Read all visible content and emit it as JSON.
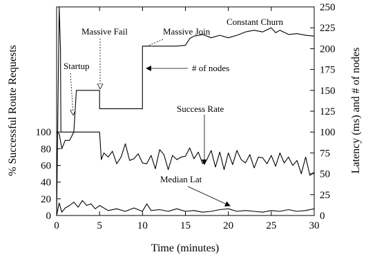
{
  "chart_data": {
    "type": "line",
    "xlabel": "Time (minutes)",
    "ylabel_left": "% Successful Route Requests",
    "ylabel_right": "Latency (ms) and # of nodes",
    "xlim": [
      0,
      30
    ],
    "ylim_right": [
      0,
      250
    ],
    "left_axis_scale_note": "left axis 0-100 maps to right axis 0-100",
    "x_ticks": [
      0,
      5,
      10,
      15,
      20,
      25,
      30
    ],
    "y_left_ticks": [
      0,
      20,
      40,
      60,
      80,
      100
    ],
    "y_right_ticks": [
      0,
      25,
      50,
      75,
      100,
      125,
      150,
      175,
      200,
      225,
      250
    ],
    "grid": false,
    "legend": "none",
    "series": [
      {
        "x": [
          0,
          0.3,
          0.45,
          0.5,
          1.0,
          1.5,
          2.0,
          2.3,
          2.5,
          3.0,
          3.5,
          4.0,
          4.5,
          5.0,
          5.0,
          5.3,
          6.0,
          7.0,
          8.0,
          9.0,
          10.0,
          10.0,
          11,
          12,
          13,
          14,
          15,
          15.5,
          16,
          17,
          18,
          19,
          20,
          21,
          22,
          23,
          24,
          25,
          25.5,
          26,
          27,
          28,
          29,
          30
        ],
        "values": [
          0,
          250,
          200,
          100,
          100,
          100,
          100,
          150,
          150,
          150,
          150,
          150,
          150,
          150,
          128,
          128,
          128,
          128,
          128,
          128,
          128,
          203,
          203,
          203,
          203,
          203,
          204,
          212,
          215,
          217,
          213,
          216,
          213,
          216,
          220,
          222,
          220,
          225,
          219,
          222,
          217,
          218,
          216,
          215
        ]
      },
      {
        "x": [
          0,
          0.3,
          0.6,
          1.0,
          1.5,
          2.0,
          2.5,
          3.0,
          3.5,
          4.0,
          4.5,
          5.0,
          5.2,
          5.5,
          6,
          6.5,
          7,
          7.5,
          8,
          8.5,
          9,
          9.5,
          10,
          10.5,
          11,
          11.5,
          12,
          12.5,
          13,
          13.5,
          14,
          14.5,
          15,
          15.5,
          16,
          16.5,
          17,
          17.5,
          18,
          18.5,
          19,
          19.5,
          20,
          20.5,
          21,
          21.5,
          22,
          22.5,
          23,
          23.5,
          24,
          24.5,
          25,
          25.5,
          26,
          26.5,
          27,
          27.5,
          28,
          28.5,
          29,
          29.5,
          30
        ],
        "values": [
          100,
          98,
          80,
          90,
          90,
          100,
          100,
          100,
          100,
          100,
          100,
          100,
          67,
          75,
          70,
          77,
          62,
          70,
          86,
          66,
          68,
          74,
          63,
          62,
          72,
          56,
          79,
          73,
          55,
          72,
          67,
          70,
          71,
          81,
          68,
          76,
          62,
          67,
          78,
          58,
          76,
          55,
          75,
          61,
          78,
          67,
          63,
          73,
          57,
          70,
          69,
          62,
          72,
          59,
          75,
          63,
          70,
          60,
          66,
          50,
          70,
          48,
          52
        ]
      },
      {
        "x": [
          0,
          0.3,
          0.6,
          1.0,
          1.5,
          2.0,
          2.5,
          3.0,
          3.5,
          4.0,
          4.5,
          5.0,
          6,
          7,
          8,
          9,
          10,
          10.5,
          11,
          12,
          13,
          14,
          15,
          16,
          17,
          18,
          19,
          20,
          21,
          22,
          23,
          24,
          25,
          26,
          27,
          28,
          29,
          30
        ],
        "values": [
          0,
          15,
          4,
          9,
          12,
          16,
          10,
          18,
          12,
          14,
          8,
          12,
          6,
          8,
          5,
          9,
          5,
          14,
          6,
          7,
          5,
          8,
          5,
          6,
          4,
          5,
          7,
          8,
          5,
          6,
          5,
          4,
          6,
          5,
          7,
          5,
          6,
          8
        ]
      }
    ],
    "annotations": [
      {
        "text": "Constant Churn"
      },
      {
        "text": "Massive Join"
      },
      {
        "text": "Massive Fail"
      },
      {
        "text": "Startup"
      },
      {
        "text": "# of nodes"
      },
      {
        "text": "Success Rate"
      },
      {
        "text": "Median Lat"
      }
    ]
  }
}
